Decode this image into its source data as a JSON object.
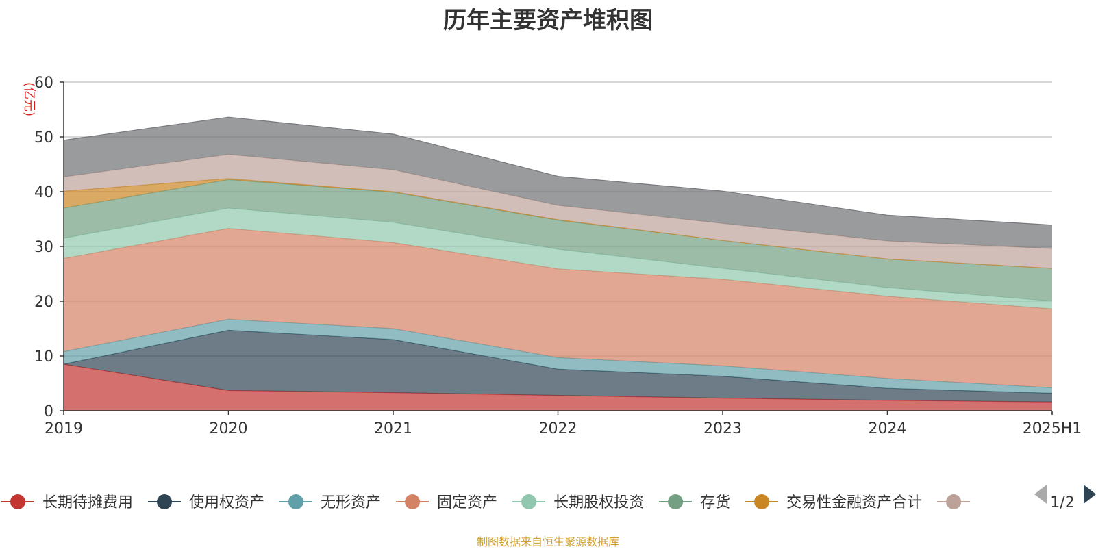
{
  "chart_data": {
    "type": "area",
    "stacked": true,
    "title": "历年主要资产堆积图",
    "unit": "(亿元)",
    "categories": [
      "2019",
      "2020",
      "2021",
      "2022",
      "2023",
      "2024",
      "2025H1"
    ],
    "ylim": [
      0,
      60
    ],
    "yticks": [
      0,
      10,
      20,
      30,
      40,
      50,
      60
    ],
    "grid": true,
    "legend_position": "bottom",
    "series": [
      {
        "name": "长期待摊费用",
        "color": "#c23531",
        "values": [
          8.5,
          3.7,
          3.3,
          2.8,
          2.3,
          1.9,
          1.6
        ]
      },
      {
        "name": "使用权资产",
        "color": "#2f4554",
        "values": [
          0.0,
          11.0,
          9.7,
          4.8,
          4.0,
          2.2,
          1.6
        ]
      },
      {
        "name": "无形资产",
        "color": "#61a0a8",
        "values": [
          2.3,
          2.0,
          2.0,
          2.1,
          1.9,
          1.8,
          1.0
        ]
      },
      {
        "name": "固定资产",
        "color": "#d48265",
        "values": [
          17.0,
          16.6,
          15.7,
          16.2,
          15.8,
          15.0,
          14.4
        ]
      },
      {
        "name": "长期股权投资",
        "color": "#91c7ae",
        "values": [
          3.7,
          3.7,
          3.7,
          3.6,
          2.0,
          1.6,
          1.4
        ]
      },
      {
        "name": "存货",
        "color": "#749f83",
        "values": [
          5.5,
          5.2,
          5.5,
          5.3,
          5.1,
          5.2,
          6.0
        ]
      },
      {
        "name": "交易性金融资产合计",
        "color": "#ca8622",
        "values": [
          3.1,
          0.2,
          0.1,
          0.1,
          0.0,
          0.0,
          0.0
        ]
      },
      {
        "name": "",
        "color": "#bda29a",
        "values": [
          2.6,
          4.4,
          4.0,
          2.6,
          3.1,
          3.3,
          3.6
        ]
      },
      {
        "name": "",
        "color": "#6e7074",
        "values": [
          6.7,
          6.8,
          6.5,
          5.3,
          5.9,
          4.7,
          4.3
        ]
      }
    ]
  },
  "legend": {
    "page": "1/2"
  },
  "source_note": "制图数据来自恒生聚源数据库"
}
